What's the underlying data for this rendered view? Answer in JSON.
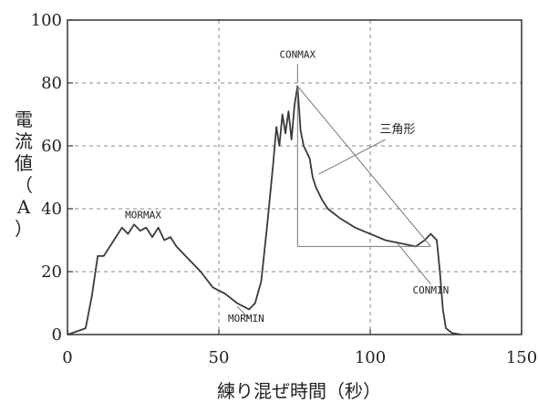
{
  "chart_data": {
    "type": "line",
    "xlabel": "練り混ぜ時間（秒）",
    "ylabel": "電流値（A）",
    "xlim": [
      0,
      150
    ],
    "ylim": [
      0,
      100
    ],
    "x_ticks": [
      "0",
      "50",
      "100",
      "150"
    ],
    "y_ticks": [
      "0",
      "20",
      "40",
      "60",
      "80",
      "100"
    ],
    "grid": "dashed",
    "series": [
      {
        "x": [
          0,
          3,
          6,
          8,
          10,
          12,
          14,
          16,
          18,
          20,
          22,
          24,
          26,
          28,
          30,
          32,
          34,
          36,
          40,
          44,
          48,
          52,
          56,
          58,
          60,
          62,
          64,
          66,
          68,
          69,
          70,
          71,
          72,
          73,
          74,
          75,
          76,
          77,
          78,
          79,
          80,
          81,
          82,
          84,
          86,
          90,
          95,
          100,
          105,
          110,
          115,
          118,
          120,
          122,
          123,
          124,
          125,
          127,
          130
        ],
        "y": [
          0,
          1,
          2,
          12,
          25,
          25,
          28,
          31,
          34,
          32,
          35,
          33,
          34,
          31,
          34,
          30,
          31,
          28,
          24,
          20,
          15,
          13,
          10,
          9,
          8,
          10,
          17,
          35,
          55,
          66,
          60,
          70,
          64,
          71,
          62,
          73,
          79,
          65,
          60,
          58,
          56,
          50,
          47,
          43,
          40,
          37,
          34,
          32,
          30,
          29,
          28,
          30,
          32,
          30,
          20,
          8,
          2,
          0.5,
          0
        ]
      }
    ],
    "annotations": [
      {
        "label": "MORMAX",
        "x": 25,
        "y": 37
      },
      {
        "label": "MORMIN",
        "x": 59,
        "y": 4
      },
      {
        "label": "CONMAX",
        "x": 76,
        "y": 88
      },
      {
        "label": "CONMIN",
        "x": 120,
        "y": 13
      },
      {
        "label": "三角形",
        "x": 109,
        "y": 64
      }
    ]
  }
}
